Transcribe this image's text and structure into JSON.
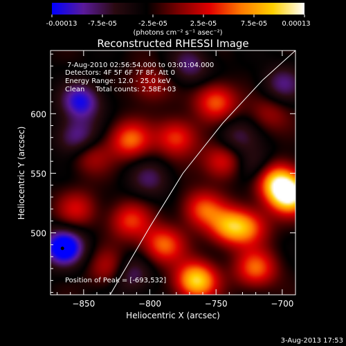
{
  "colorbar": {
    "ticks": [
      "-0.00013",
      "-7.5e-05",
      "-2.5e-05",
      "2.5e-05",
      "7.5e-05",
      "0.00013"
    ],
    "unit_label": "(photons cm⁻² s⁻¹ asec⁻²)",
    "palette": [
      "#0000ff",
      "#5a1a9a",
      "#2a0a10",
      "#000000",
      "#7a0000",
      "#e00000",
      "#ff7a00",
      "#ffd000",
      "#ffffff"
    ]
  },
  "chart_data": {
    "type": "heatmap",
    "title": "Reconstructed RHESSI Image",
    "xlabel": "Heliocentric X (arcsec)",
    "ylabel": "Heliocentric Y (arcsec)",
    "xlim": [
      -875,
      -690
    ],
    "ylim": [
      448,
      653
    ],
    "xticks": [
      -850,
      -800,
      -750,
      -700
    ],
    "yticks": [
      500,
      550,
      600
    ],
    "xtick_labels": [
      "−850",
      "−800",
      "−750",
      "−700"
    ],
    "ytick_labels": [
      "500",
      "550",
      "600"
    ],
    "info_lines": [
      "7-Aug-2010 02:56:54.000 to 03:01:04.000",
      "Detectors: 4F 5F 6F 7F 8F, Att 0",
      "Energy Range: 12.0 - 25.0 keV",
      "Clean     Total counts: 2.58E+03"
    ],
    "peak_label": "Position of Peak = [-693,532]",
    "peak_position": [
      -693,
      532
    ],
    "limb_curve": [
      [
        -830,
        448
      ],
      [
        -800,
        505
      ],
      [
        -775,
        550
      ],
      [
        -745,
        592
      ],
      [
        -715,
        628
      ],
      [
        -690,
        653
      ]
    ],
    "sources": [
      {
        "x": -695,
        "y": 532,
        "v": 1.0
      },
      {
        "x": -705,
        "y": 545,
        "v": 0.7
      },
      {
        "x": -765,
        "y": 460,
        "v": 0.85
      },
      {
        "x": -720,
        "y": 470,
        "v": 0.55
      },
      {
        "x": -790,
        "y": 490,
        "v": 0.55
      },
      {
        "x": -740,
        "y": 505,
        "v": 0.6
      },
      {
        "x": -760,
        "y": 520,
        "v": 0.5
      },
      {
        "x": -815,
        "y": 510,
        "v": 0.45
      },
      {
        "x": -855,
        "y": 520,
        "v": 0.35
      },
      {
        "x": -750,
        "y": 610,
        "v": 0.55
      },
      {
        "x": -780,
        "y": 580,
        "v": 0.5
      },
      {
        "x": -815,
        "y": 578,
        "v": 0.55
      },
      {
        "x": -845,
        "y": 565,
        "v": 0.3
      },
      {
        "x": -745,
        "y": 560,
        "v": 0.45
      },
      {
        "x": -725,
        "y": 505,
        "v": 0.45
      },
      {
        "x": -830,
        "y": 470,
        "v": 0.35
      },
      {
        "x": -800,
        "y": 625,
        "v": 0.3
      },
      {
        "x": -710,
        "y": 600,
        "v": 0.25
      },
      {
        "x": -865,
        "y": 488,
        "v": -0.75
      },
      {
        "x": -852,
        "y": 610,
        "v": -0.55
      },
      {
        "x": -855,
        "y": 580,
        "v": -0.45
      },
      {
        "x": -815,
        "y": 465,
        "v": -0.4
      },
      {
        "x": -720,
        "y": 555,
        "v": -0.35
      },
      {
        "x": -770,
        "y": 640,
        "v": -0.35
      },
      {
        "x": -800,
        "y": 545,
        "v": -0.3
      },
      {
        "x": -700,
        "y": 625,
        "v": -0.35
      },
      {
        "x": -735,
        "y": 580,
        "v": -0.3
      }
    ]
  },
  "footer": {
    "date": "3-Aug-2013 17:53"
  }
}
